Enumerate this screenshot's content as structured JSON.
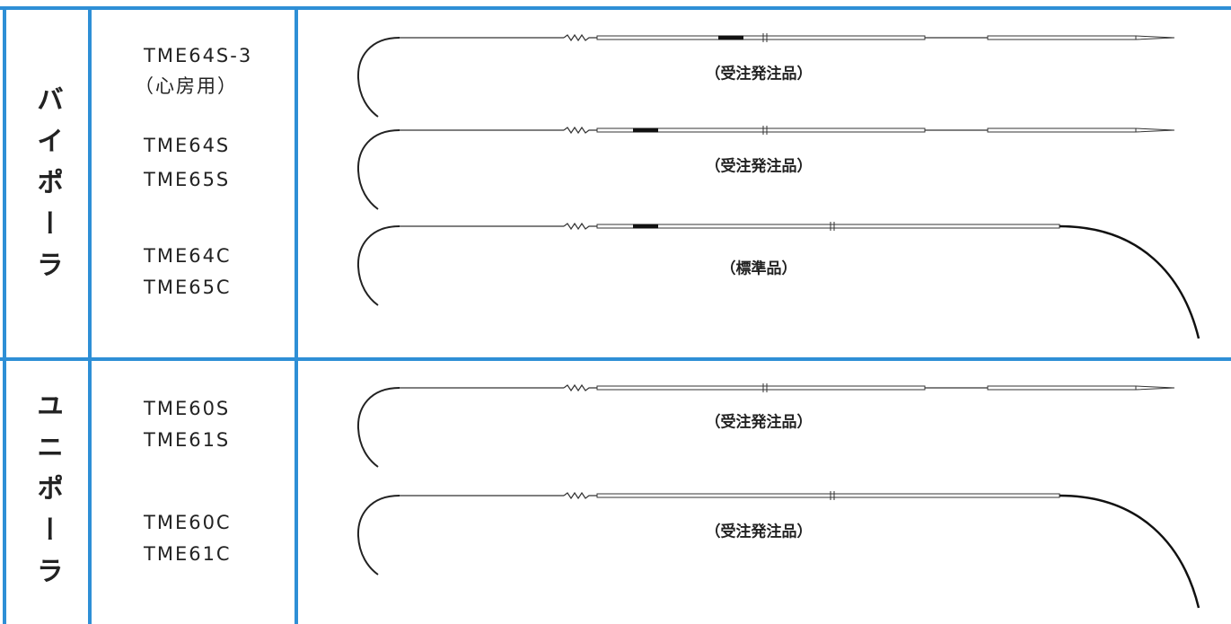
{
  "sections": [
    {
      "label": "バイポーラ",
      "items": [
        {
          "models": [
            "TME64S-3",
            "（心房用）"
          ],
          "note": "（受注発注品）"
        },
        {
          "models": [
            "TME64S",
            "TME65S"
          ],
          "note": "（受注発注品）"
        },
        {
          "models": [
            "TME64C",
            "TME65C"
          ],
          "note": "（標準品）"
        }
      ]
    },
    {
      "label": "ユニポーラ",
      "items": [
        {
          "models": [
            "TME60S",
            "TME61S"
          ],
          "note": "（受注発注品）"
        },
        {
          "models": [
            "TME60C",
            "TME61C"
          ],
          "note": "（受注発注品）"
        }
      ]
    }
  ]
}
